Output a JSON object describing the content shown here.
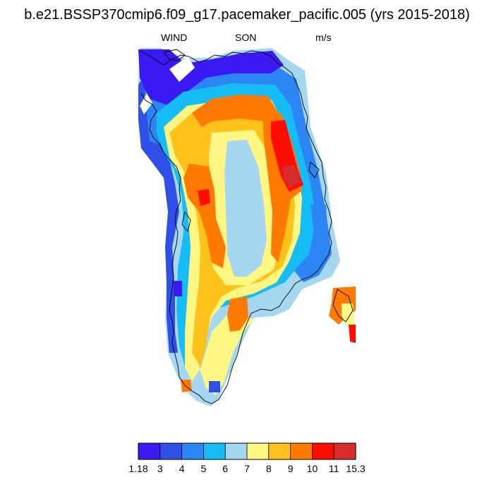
{
  "title": "b.e21.BSSP370cmip6.f09_g17.pacemaker_pacific.005 (yrs 2015-2018)",
  "subtitle": {
    "left": "WIND",
    "center": "SON",
    "right": "m/s"
  },
  "colors": {
    "bins": [
      "#3b19f2",
      "#2f4fe6",
      "#2b86f4",
      "#16bcf6",
      "#a6d7f0",
      "#fff783",
      "#ffc21a",
      "#ff7a00",
      "#ff0d00",
      "#d62e2e"
    ],
    "coastline": "#000000",
    "background": "#ffffff"
  },
  "colorbar": {
    "labels": [
      "1.18",
      "3",
      "4",
      "5",
      "6",
      "7",
      "8",
      "9",
      "10",
      "11",
      "15.3"
    ]
  }
}
